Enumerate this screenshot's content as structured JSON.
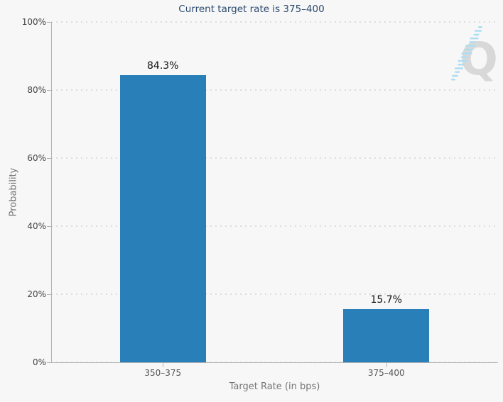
{
  "chart_data": {
    "type": "bar",
    "title": "Current target rate is 375–400",
    "categories": [
      "350–375",
      "375–400"
    ],
    "values": [
      84.3,
      15.7
    ],
    "value_labels": [
      "84.3%",
      "15.7%"
    ],
    "xlabel": "Target Rate (in bps)",
    "ylabel": "Probability",
    "ylim": [
      0,
      100
    ],
    "yticks": [
      0,
      20,
      40,
      60,
      80,
      100
    ],
    "ytick_labels": [
      "0%",
      "20%",
      "40%",
      "60%",
      "80%",
      "100%"
    ],
    "legend": "none",
    "grid": "horizontal-dotted",
    "watermark": "Q",
    "colors": {
      "bar": "#2980b9",
      "background": "#f7f7f7",
      "title": "#2b4a6e",
      "axis_line": "#b3b3b3",
      "grid_dots": "#dcdcdc",
      "ytick_label": "#444444",
      "xtick_label": "#555555",
      "axis_title": "#757575",
      "value_label": "#111111",
      "watermark_q": "#d8d8d8",
      "watermark_dash": "#aeddf2"
    }
  }
}
